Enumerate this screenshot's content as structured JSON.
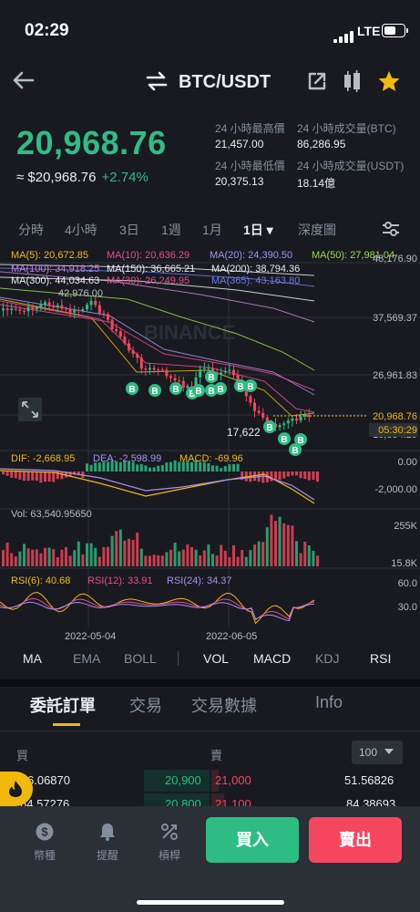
{
  "status_bar": {
    "time": "02:29",
    "network": "LTE"
  },
  "header": {
    "pair": "BTC/USDT"
  },
  "ticker": {
    "last_price": "20,968.76",
    "fiat_price": "≈ $20,968.76",
    "change": "+2.74%",
    "stats": [
      {
        "label": "24 小時最高價",
        "value": "21,457.00"
      },
      {
        "label": "24 小時成交量(BTC)",
        "value": "86,286.95"
      },
      {
        "label": "24 小時最低價",
        "value": "20,375.13"
      },
      {
        "label": "24 小時成交量(USDT)",
        "value": "18.14億"
      }
    ]
  },
  "interval_tabs": [
    "分時",
    "4小時",
    "3日",
    "1週",
    "1月",
    "1日 ▾",
    "深度圖"
  ],
  "active_interval": "1日 ▾",
  "chart_data": {
    "type": "candlestick",
    "ma_labels": [
      {
        "text": "MA(5): 20,672.85",
        "color": "#f0b90b"
      },
      {
        "text": "MA(10): 20,636.29",
        "color": "#e84a8f"
      },
      {
        "text": "MA(20): 24,390.50",
        "color": "#a98ff0"
      },
      {
        "text": "MA(50): 27,981.04",
        "color": "#9bd84a"
      },
      {
        "text": "MA(100): 34,918.25",
        "color": "#c77fd9"
      },
      {
        "text": "MA(150): 36,665.21",
        "color": "#eaecef"
      },
      {
        "text": "MA(200): 38,794.36",
        "color": "#eaecef"
      },
      {
        "text": "MA(300): 44,034.63",
        "color": "#eaecef"
      },
      {
        "text": "MA(30): 26,249.95",
        "color": "#e84a8f"
      },
      {
        "text": "MA(365): 43,163.80",
        "color": "#6b7af0"
      }
    ],
    "y_axis_labels": [
      "48,176.90",
      "37,569.37",
      "26,961.83",
      "16,354.29"
    ],
    "current_price_label": "20,968.76",
    "countdown": "05:30:29",
    "low_marker": "17,622",
    "high_marker": "42,976.00",
    "watermark": "BINANCE",
    "macd": {
      "dif": "DIF: -2,668.95",
      "dea": "DEA: -2,598.99",
      "macd": "MACD: -69.96",
      "axis": [
        "0.00",
        "-2,000.00"
      ]
    },
    "volume": {
      "label": "Vol: 63,540.95650",
      "axis": [
        "255K",
        "15.8K"
      ]
    },
    "rsi": {
      "rsi6": "RSI(6): 40.68",
      "rsi12": "RSI(12): 33.91",
      "rsi24": "RSI(24): 34.37",
      "axis": [
        "60.0",
        "30.0"
      ]
    },
    "x_axis_labels": [
      "2022-05-04",
      "2022-06-05"
    ]
  },
  "indicator_tabs": [
    "MA",
    "EMA",
    "BOLL",
    "VOL",
    "MACD",
    "KDJ",
    "RSI"
  ],
  "order_tabs": [
    "委託訂單",
    "交易",
    "交易數據",
    "Info"
  ],
  "order_book": {
    "buy_label": "買",
    "sell_label": "賣",
    "depth_select": "100",
    "rows": [
      {
        "bid_qty": "6.06870",
        "bid_price": "20,900",
        "ask_price": "21,000",
        "ask_qty": "51.56826"
      },
      {
        "bid_qty": "64.57276",
        "bid_price": "20,800",
        "ask_price": "21,100",
        "ask_qty": "84.38693"
      }
    ]
  },
  "bottom_nav": [
    {
      "label": "幣種",
      "icon": "coin-icon"
    },
    {
      "label": "提醒",
      "icon": "bell-icon"
    },
    {
      "label": "槓桿",
      "icon": "leverage-icon"
    }
  ],
  "actions": {
    "buy": "買入",
    "sell": "賣出"
  },
  "colors": {
    "up": "#2ebd85",
    "down": "#f6465d",
    "accent": "#f0b90b",
    "bg": "#181a20"
  }
}
